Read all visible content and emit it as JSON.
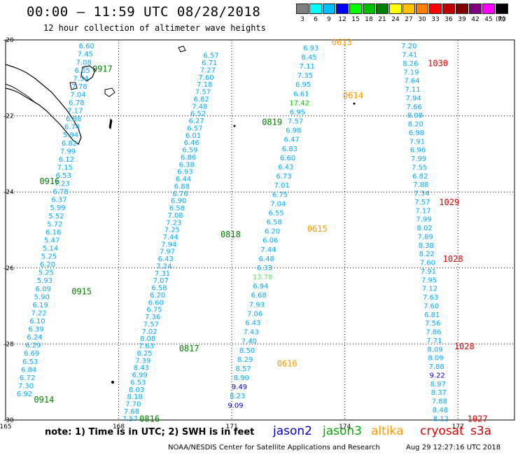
{
  "header": {
    "title": "00:00 – 11:59 UTC 08/28/2018",
    "subtitle": "12 hour collection of altimeter wave heights"
  },
  "scale": {
    "levels": [
      "3",
      "6",
      "9",
      "12",
      "15",
      "18",
      "21",
      "24",
      "27",
      "30",
      "33",
      "36",
      "39",
      "42",
      "45",
      "70"
    ],
    "colors": [
      "#7f7f7f",
      "#00ffff",
      "#00bfff",
      "#0000ff",
      "#00ff00",
      "#00c000",
      "#008000",
      "#ffff00",
      "#ffc000",
      "#ff8000",
      "#ff0000",
      "#c00000",
      "#800000",
      "#800080",
      "#ff00ff",
      "#000000"
    ],
    "unit": "(ft)"
  },
  "chart_data": {
    "type": "scatter",
    "x_ticks": [
      "165",
      "168",
      "171",
      "174",
      "177"
    ],
    "y_ticks": [
      "-20",
      "-22",
      "-24",
      "-26",
      "-28",
      "-30"
    ],
    "xlim": [
      165,
      178.5
    ],
    "ylim": [
      -30,
      -20
    ],
    "grid": true,
    "tracks": [
      {
        "pass": "0917",
        "mission": "jason3",
        "color": "#00aaff",
        "start": [
          167.15,
          -20.15
        ],
        "end": [
          165.5,
          -29.3
        ],
        "values": [
          "6.60",
          "7.45",
          "7.08",
          "6.65",
          "7.54",
          "7.78",
          "7.04",
          "6.78",
          "7.17",
          "6.88",
          "6.74",
          "5.94",
          "6.82",
          "7.99",
          "6.12",
          "7.15",
          "6.53",
          "7.23",
          "6.78",
          "6.37",
          "5.99",
          "5.52",
          "5.72",
          "6.16",
          "5.47",
          "5.14",
          "5.25",
          "6.20",
          "5.25",
          "5.93",
          "6.09",
          "5.90",
          "6.19",
          "7.22",
          "6.10",
          "6.39",
          "6.24",
          "6.29",
          "6.69",
          "6.53",
          "6.84",
          "6.72",
          "7.30",
          "6.92"
        ],
        "labels": [
          {
            "text": "0917",
            "lon": 167.3,
            "lat": -20.75,
            "color": "#008000"
          },
          {
            "text": "0916",
            "lon": 165.9,
            "lat": -23.7,
            "color": "#008000"
          },
          {
            "text": "0915",
            "lon": 166.75,
            "lat": -26.6,
            "color": "#008000"
          },
          {
            "text": "0914",
            "lon": 165.75,
            "lat": -29.45,
            "color": "#008000"
          }
        ]
      },
      {
        "pass": "0818",
        "mission": "jason3",
        "color": "#00aaff",
        "start": [
          170.45,
          -20.4
        ],
        "end": [
          168.3,
          -29.95
        ],
        "values": [
          "6.57",
          "6.71",
          "7.27",
          "7.60",
          "7.18",
          "7.57",
          "6.82",
          "7.48",
          "6.52",
          "6.27",
          "6.57",
          "6.01",
          "6.46",
          "6.59",
          "6.86",
          "6.38",
          "6.93",
          "6.44",
          "6.88",
          "6.76",
          "6.90",
          "6.58",
          "7.08",
          "7.23",
          "7.25",
          "7.44",
          "7.94",
          "7.97",
          "6.43",
          "7.24",
          "7.31",
          "7.07",
          "6.58",
          "6.20",
          "6.60",
          "6.75",
          "7.36",
          "7.57",
          "7.02",
          "8.08",
          "7.63",
          "8.25",
          "7.39",
          "8.43",
          "6.99",
          "6.53",
          "8.03",
          "8.18",
          "7.70",
          "7.68",
          "7.57"
        ],
        "labels": [
          {
            "text": "0819",
            "lon": 171.8,
            "lat": -22.15,
            "color": "#008000"
          },
          {
            "text": "0818",
            "lon": 170.7,
            "lat": -25.1,
            "color": "#008000"
          },
          {
            "text": "0817",
            "lon": 169.6,
            "lat": -28.1,
            "color": "#008000"
          },
          {
            "text": "0816",
            "lon": 168.55,
            "lat": -29.95,
            "color": "#008000"
          }
        ]
      },
      {
        "pass": "0614",
        "mission": "altika",
        "color": "#00aaff",
        "start": [
          173.1,
          -20.2
        ],
        "end": [
          171.1,
          -29.6
        ],
        "values": [
          "6.93",
          "8.45",
          "7.11",
          "7.35",
          "6.95",
          "6.61",
          "17.42",
          "6.95",
          "7.57",
          "6.98",
          "6.47",
          "6.83",
          "6.60",
          "6.43",
          "6.73",
          "7.01",
          "6.75",
          "7.04",
          "6.55",
          "6.58",
          "6.20",
          "6.06",
          "7.44",
          "6.48",
          "6.33",
          "13.78",
          "6.94",
          "6.68",
          "7.93",
          "7.06",
          "6.43",
          "7.43",
          "7.40",
          "8.50",
          "8.29",
          "8.57",
          "8.90",
          "9.49",
          "8.23",
          "9.09"
        ],
        "labels": [
          {
            "text": "0613",
            "lon": 173.65,
            "lat": -20.05,
            "color": "#ff9900"
          },
          {
            "text": "0614",
            "lon": 173.95,
            "lat": -21.45,
            "color": "#ff9900"
          },
          {
            "text": "0615",
            "lon": 173.0,
            "lat": -24.95,
            "color": "#ff9900"
          },
          {
            "text": "0616",
            "lon": 172.2,
            "lat": -28.5,
            "color": "#ff9900"
          }
        ]
      },
      {
        "pass": "1030",
        "mission": "cryosat",
        "color": "#00aaff",
        "start": [
          175.7,
          -20.15
        ],
        "end": [
          176.55,
          -29.95
        ],
        "values": [
          "7.20",
          "7.41",
          "8.26",
          "7.19",
          "7.64",
          "7.11",
          "7.94",
          "7.66",
          "8.08",
          "8.20",
          "6.98",
          "7.91",
          "6.96",
          "7.99",
          "7.55",
          "6.82",
          "7.88",
          "7.34",
          "7.57",
          "7.17",
          "7.99",
          "8.02",
          "7.89",
          "8.38",
          "8.22",
          "7.60",
          "7.91",
          "7.95",
          "7.12",
          "7.63",
          "7.60",
          "6.81",
          "7.56",
          "7.86",
          "7.71",
          "8.09",
          "8.09",
          "7.88",
          "9.22",
          "8.97",
          "8.37",
          "7.88",
          "8.48",
          "8.12"
        ],
        "labels": [
          {
            "text": "1030",
            "lon": 176.2,
            "lat": -20.6,
            "color": "#dd0000"
          },
          {
            "text": "1029",
            "lon": 176.5,
            "lat": -24.25,
            "color": "#dd0000"
          },
          {
            "text": "1028",
            "lon": 176.6,
            "lat": -25.75,
            "color": "#dd0000"
          },
          {
            "text": "1028",
            "lon": 176.9,
            "lat": -28.05,
            "color": "#dd0000"
          },
          {
            "text": "1027",
            "lon": 177.25,
            "lat": -29.95,
            "color": "#dd0000"
          }
        ]
      }
    ],
    "point_colors": [
      {
        "pass": "0614",
        "index": 6,
        "color": "#00cc00"
      },
      {
        "pass": "0614",
        "index": 25,
        "color": "#66dd66"
      },
      {
        "pass": "0614",
        "index": 37,
        "color": "#0000cc"
      },
      {
        "pass": "0614",
        "index": 39,
        "color": "#0000cc"
      },
      {
        "pass": "1030",
        "index": 38,
        "color": "#0000cc"
      }
    ]
  },
  "note": "note: 1) Time is in UTC; 2) SWH is in feet",
  "legend": [
    {
      "name": "jason2",
      "color": "#0000cc"
    },
    {
      "name": "jason3",
      "color": "#00aa00"
    },
    {
      "name": "altika",
      "color": "#ff9900"
    },
    {
      "name": "cryosat",
      "color": "#dd0000"
    },
    {
      "name": "s3a",
      "color": "#cc0000"
    }
  ],
  "footer": "NOAA/NESDIS Center for Satellite Applications and Research",
  "timestamp": "Aug 29 12:27:16 UTC 2018"
}
